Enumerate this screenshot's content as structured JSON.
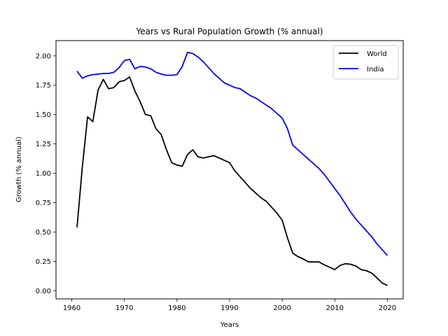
{
  "chart_data": {
    "type": "line",
    "title": "Years vs Rural Population Growth (% annual)",
    "xlabel": "Years",
    "ylabel": "Growth (% annual)",
    "xlim": [
      1957,
      2023
    ],
    "ylim": [
      -0.07,
      2.13
    ],
    "x_ticks": [
      1960,
      1970,
      1980,
      1990,
      2000,
      2010,
      2020
    ],
    "y_ticks": [
      0.0,
      0.25,
      0.5,
      0.75,
      1.0,
      1.25,
      1.5,
      1.75,
      2.0
    ],
    "y_tick_labels": [
      "0.00",
      "0.25",
      "0.50",
      "0.75",
      "1.00",
      "1.25",
      "1.50",
      "1.75",
      "2.00"
    ],
    "legend_position": "top-right",
    "grid": false,
    "x": [
      1961,
      1962,
      1963,
      1964,
      1965,
      1966,
      1967,
      1968,
      1969,
      1970,
      1971,
      1972,
      1973,
      1974,
      1975,
      1976,
      1977,
      1978,
      1979,
      1980,
      1981,
      1982,
      1983,
      1984,
      1985,
      1986,
      1987,
      1988,
      1989,
      1990,
      1991,
      1992,
      1993,
      1994,
      1995,
      1996,
      1997,
      1998,
      1999,
      2000,
      2001,
      2002,
      2003,
      2004,
      2005,
      2006,
      2007,
      2008,
      2009,
      2010,
      2011,
      2012,
      2013,
      2014,
      2015,
      2016,
      2017,
      2018,
      2019,
      2020
    ],
    "series": [
      {
        "name": "World",
        "color": "#000000",
        "values": [
          0.54,
          1.05,
          1.48,
          1.44,
          1.71,
          1.8,
          1.72,
          1.73,
          1.78,
          1.79,
          1.82,
          1.7,
          1.61,
          1.5,
          1.49,
          1.38,
          1.33,
          1.2,
          1.09,
          1.07,
          1.06,
          1.16,
          1.2,
          1.14,
          1.13,
          1.14,
          1.15,
          1.13,
          1.11,
          1.09,
          1.02,
          0.97,
          0.92,
          0.87,
          0.83,
          0.79,
          0.76,
          0.71,
          0.66,
          0.6,
          0.45,
          0.32,
          0.29,
          0.27,
          0.245,
          0.245,
          0.245,
          0.22,
          0.2,
          0.18,
          0.215,
          0.23,
          0.225,
          0.21,
          0.18,
          0.17,
          0.15,
          0.11,
          0.065,
          0.045
        ]
      },
      {
        "name": "India",
        "color": "#0000ff",
        "values": [
          1.87,
          1.81,
          1.83,
          1.84,
          1.845,
          1.85,
          1.85,
          1.86,
          1.9,
          1.96,
          1.97,
          1.89,
          1.91,
          1.905,
          1.89,
          1.86,
          1.845,
          1.835,
          1.835,
          1.84,
          1.91,
          2.03,
          2.02,
          1.99,
          1.95,
          1.9,
          1.85,
          1.81,
          1.77,
          1.75,
          1.73,
          1.72,
          1.69,
          1.66,
          1.64,
          1.61,
          1.58,
          1.55,
          1.51,
          1.47,
          1.38,
          1.24,
          1.2,
          1.16,
          1.12,
          1.08,
          1.04,
          0.99,
          0.93,
          0.87,
          0.81,
          0.74,
          0.67,
          0.61,
          0.56,
          0.51,
          0.46,
          0.4,
          0.35,
          0.3
        ]
      }
    ]
  }
}
